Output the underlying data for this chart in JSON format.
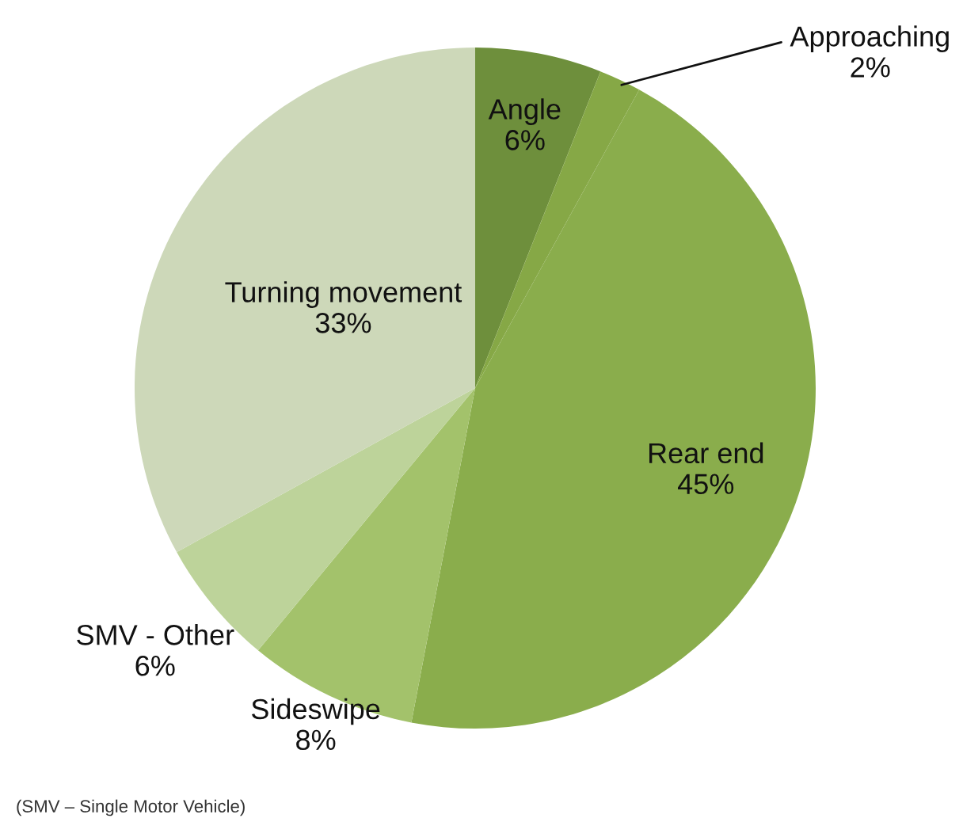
{
  "chart_data": {
    "type": "pie",
    "categories": [
      "Angle",
      "Approaching",
      "Rear end",
      "Sideswipe",
      "SMV - Other",
      "Turning movement"
    ],
    "values": [
      6,
      2,
      45,
      8,
      6,
      33
    ],
    "colors": [
      "#6e8f3c",
      "#86a846",
      "#8aad4c",
      "#a3c26b",
      "#bdd39a",
      "#cdd8b9"
    ],
    "value_labels": [
      "6%",
      "2%",
      "45%",
      "8%",
      "6%",
      "33%"
    ],
    "annotations": [
      "(SMV – Single Motor Vehicle)"
    ]
  }
}
